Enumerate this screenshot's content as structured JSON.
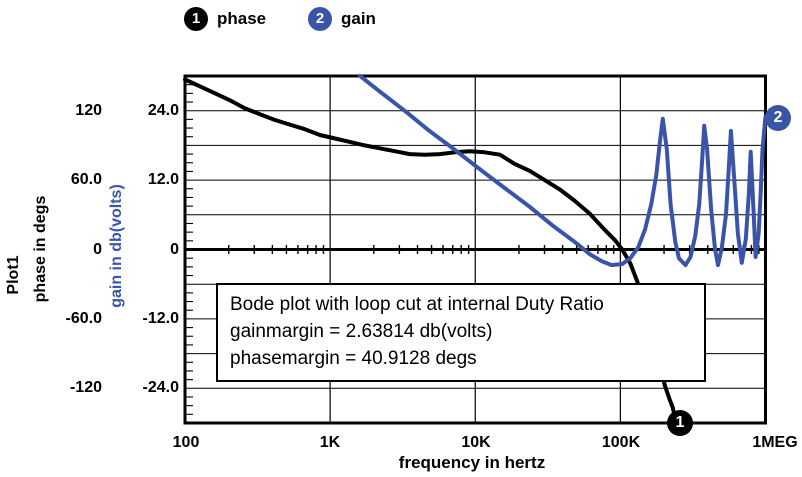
{
  "colors": {
    "phase_black": "#000000",
    "gain_blue": "#3a55a8",
    "grid": "#000000",
    "background": "#ffffff"
  },
  "legend": {
    "items": [
      {
        "marker": "1",
        "label": "phase"
      },
      {
        "marker": "2",
        "label": "gain"
      }
    ]
  },
  "plot": {
    "title_vertical": "Plot1",
    "left_axis": {
      "label": "phase in degs",
      "ticks": [
        "120",
        "60.0",
        "0",
        "-60.0",
        "-120"
      ]
    },
    "gain_axis": {
      "label": "gain in db(volts)",
      "ticks": [
        "24.0",
        "12.0",
        "0",
        "-12.0",
        "-24.0"
      ]
    },
    "x_axis": {
      "label": "frequency in hertz",
      "ticks": [
        "100",
        "1K",
        "10K",
        "100K",
        "1MEG"
      ]
    }
  },
  "annotation": {
    "lines": [
      "Bode plot with loop cut at internal Duty Ratio",
      "gainmargin = 2.63814 db(volts)",
      "phasemargin = 40.9128 degs"
    ]
  },
  "markers": {
    "phase_end": "1",
    "gain_end": "2"
  },
  "chart_data": {
    "type": "line",
    "title": "Bode plot with loop cut at internal Duty Ratio",
    "xlabel": "frequency in hertz",
    "x_scale": "log",
    "x_range": [
      100,
      1000000
    ],
    "x_tick_values": [
      100,
      1000,
      10000,
      100000,
      1000000
    ],
    "grid": true,
    "gainmargin_db": 2.63814,
    "phasemargin_degs": 40.9128,
    "axes": [
      {
        "name": "phase in degs",
        "unit": "deg",
        "range": [
          -150,
          150
        ],
        "tick_values": [
          120,
          60,
          0,
          -60,
          -120
        ]
      },
      {
        "name": "gain in db(volts)",
        "unit": "db",
        "range": [
          -30,
          30
        ],
        "tick_values": [
          24,
          12,
          0,
          -12,
          -24
        ]
      }
    ],
    "series": [
      {
        "name": "phase",
        "unit": "deg",
        "color": "#000000",
        "marker": "1",
        "points": [
          [
            100,
            147
          ],
          [
            127,
            141
          ],
          [
            161,
            135
          ],
          [
            204,
            129
          ],
          [
            259,
            122
          ],
          [
            328,
            117
          ],
          [
            417,
            112
          ],
          [
            528,
            108
          ],
          [
            670,
            104
          ],
          [
            850,
            99
          ],
          [
            1080,
            96
          ],
          [
            1370,
            93
          ],
          [
            1730,
            90
          ],
          [
            2200,
            87.5
          ],
          [
            2790,
            85
          ],
          [
            3540,
            82.5
          ],
          [
            4490,
            82
          ],
          [
            5700,
            82.5
          ],
          [
            7230,
            84
          ],
          [
            9170,
            85
          ],
          [
            11600,
            84
          ],
          [
            14800,
            82
          ],
          [
            18700,
            74
          ],
          [
            23700,
            68
          ],
          [
            30100,
            60
          ],
          [
            38200,
            52
          ],
          [
            48500,
            42
          ],
          [
            61500,
            31
          ],
          [
            78000,
            17
          ],
          [
            91800,
            8
          ],
          [
            103000,
            0
          ],
          [
            117000,
            -12
          ],
          [
            131000,
            -28
          ],
          [
            148000,
            -51
          ],
          [
            166000,
            -75
          ],
          [
            185000,
            -98
          ],
          [
            203000,
            -118
          ],
          [
            219000,
            -130
          ],
          [
            230000,
            -137
          ],
          [
            234000,
            -142
          ]
        ]
      },
      {
        "name": "gain",
        "unit": "db",
        "color": "#3a55a8",
        "marker": "2",
        "points": [
          [
            1610,
            30
          ],
          [
            2200,
            27.3
          ],
          [
            3260,
            24
          ],
          [
            4830,
            20.5
          ],
          [
            7160,
            17.3
          ],
          [
            10600,
            14
          ],
          [
            15800,
            10.7
          ],
          [
            23400,
            7.5
          ],
          [
            34700,
            4
          ],
          [
            48500,
            1.3
          ],
          [
            61500,
            -0.8
          ],
          [
            74200,
            -2
          ],
          [
            87000,
            -2.7
          ],
          [
            103000,
            -2.5
          ],
          [
            117000,
            -1.5
          ],
          [
            133000,
            0.4
          ],
          [
            148000,
            3.5
          ],
          [
            163000,
            7.8
          ],
          [
            177000,
            13
          ],
          [
            187000,
            18.5
          ],
          [
            196000,
            22.6
          ],
          [
            209000,
            17.3
          ],
          [
            222000,
            7.8
          ],
          [
            239000,
            1.3
          ],
          [
            253000,
            -1.5
          ],
          [
            281000,
            -2.7
          ],
          [
            304000,
            -1.3
          ],
          [
            328000,
            2.3
          ],
          [
            349000,
            7.8
          ],
          [
            366000,
            15.6
          ],
          [
            378000,
            21.4
          ],
          [
            396000,
            17.3
          ],
          [
            422000,
            7
          ],
          [
            449000,
            0.1
          ],
          [
            471000,
            -2.7
          ],
          [
            501000,
            0.4
          ],
          [
            534000,
            6.1
          ],
          [
            560000,
            14.7
          ],
          [
            578000,
            20.5
          ],
          [
            606000,
            13
          ],
          [
            645000,
            2.7
          ],
          [
            687000,
            -2.3
          ],
          [
            732000,
            1.8
          ],
          [
            767000,
            9.5
          ],
          [
            791000,
            16.9
          ],
          [
            829000,
            6.1
          ],
          [
            855000,
            -1.3
          ],
          [
            896000,
            2.7
          ],
          [
            925000,
            9.5
          ],
          [
            954000,
            17.3
          ],
          [
            1000000,
            23
          ]
        ]
      }
    ]
  }
}
